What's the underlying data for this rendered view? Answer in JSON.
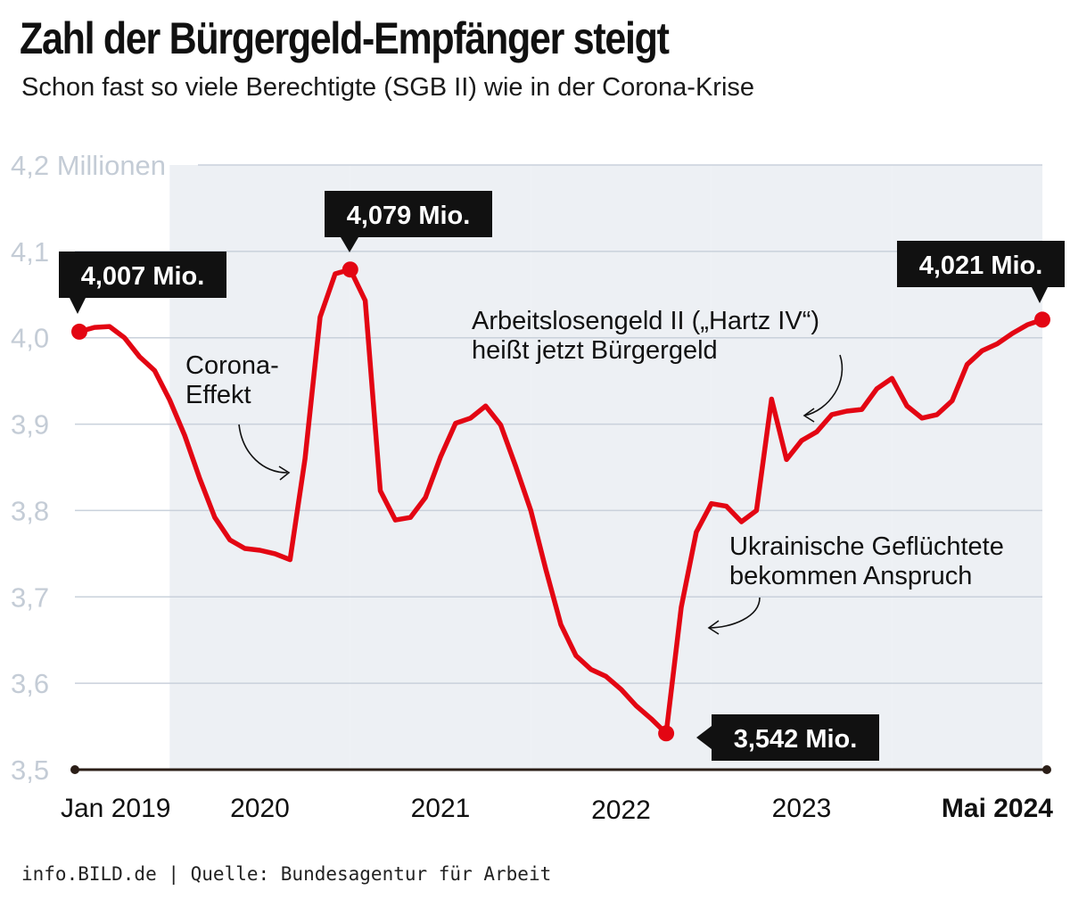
{
  "header": {
    "title": "Zahl der Bürgergeld-Empfänger steigt",
    "subtitle": "Schon fast so viele Berechtigte (SGB II) wie in der Corona-Krise"
  },
  "footer": {
    "source": "info.BILD.de | Quelle: Bundesagentur für Arbeit"
  },
  "colors": {
    "line": "#e30613",
    "band": "#edf0f4",
    "grid": "#c9d1db",
    "axis": "#2b1e17",
    "callout_bg": "#111111",
    "y_label": "#c4ccd6"
  },
  "chart_data": {
    "type": "line",
    "title": "Zahl der Bürgergeld-Empfänger steigt",
    "subtitle": "Schon fast so viele Berechtigte (SGB II) wie in der Corona-Krise",
    "ylim": [
      3.5,
      4.2
    ],
    "xlim": [
      "2019-01",
      "2024-05"
    ],
    "y_ticks": [
      {
        "value": 4.2,
        "label": "4,2 Millionen"
      },
      {
        "value": 4.1,
        "label": "4,1"
      },
      {
        "value": 4.0,
        "label": "4,0"
      },
      {
        "value": 3.9,
        "label": "3,9"
      },
      {
        "value": 3.8,
        "label": "3,8"
      },
      {
        "value": 3.7,
        "label": "3,7"
      },
      {
        "value": 3.6,
        "label": "3,6"
      },
      {
        "value": 3.5,
        "label": "3,5"
      }
    ],
    "x_ticks": [
      {
        "date": "2019-01",
        "label": "Jan 2019",
        "bold": false,
        "anchor": "start"
      },
      {
        "date": "2020-01",
        "label": "2020",
        "bold": false,
        "anchor": "middle"
      },
      {
        "date": "2021-01",
        "label": "2021",
        "bold": false,
        "anchor": "middle"
      },
      {
        "date": "2022-01",
        "label": "2022",
        "bold": false,
        "anchor": "middle"
      },
      {
        "date": "2023-01",
        "label": "2023",
        "bold": false,
        "anchor": "middle"
      },
      {
        "date": "2024-05",
        "label": "Mai 2024",
        "bold": true,
        "anchor": "end"
      }
    ],
    "shaded_years": [
      "2019-07",
      "2020-07",
      "2021-07",
      "2022-07",
      "2023-07"
    ],
    "grid": true,
    "legend": "none",
    "series": [
      {
        "dates": [
          "2019-01",
          "2019-02",
          "2019-03",
          "2019-04",
          "2019-05",
          "2019-06",
          "2019-07",
          "2019-08",
          "2019-09",
          "2019-10",
          "2019-11",
          "2019-12",
          "2020-01",
          "2020-02",
          "2020-03",
          "2020-04",
          "2020-05",
          "2020-06",
          "2020-07",
          "2020-08",
          "2020-09",
          "2020-10",
          "2020-11",
          "2020-12",
          "2021-01",
          "2021-02",
          "2021-03",
          "2021-04",
          "2021-05",
          "2021-06",
          "2021-07",
          "2021-08",
          "2021-09",
          "2021-10",
          "2021-11",
          "2021-12",
          "2022-01",
          "2022-02",
          "2022-03",
          "2022-04",
          "2022-05",
          "2022-06",
          "2022-07",
          "2022-08",
          "2022-09",
          "2022-10",
          "2022-11",
          "2022-12",
          "2023-01",
          "2023-02",
          "2023-03",
          "2023-04",
          "2023-05",
          "2023-06",
          "2023-07",
          "2023-08",
          "2023-09",
          "2023-10",
          "2023-11",
          "2023-12",
          "2024-01",
          "2024-02",
          "2024-03",
          "2024-04",
          "2024-05"
        ],
        "values": [
          4.007,
          4.012,
          4.013,
          4.0,
          3.978,
          3.962,
          3.928,
          3.887,
          3.837,
          3.792,
          3.766,
          3.756,
          3.754,
          3.75,
          3.743,
          3.86,
          4.024,
          4.074,
          4.079,
          4.043,
          3.823,
          3.789,
          3.792,
          3.815,
          3.862,
          3.901,
          3.907,
          3.921,
          3.899,
          3.851,
          3.8,
          3.732,
          3.668,
          3.632,
          3.616,
          3.608,
          3.593,
          3.574,
          3.559,
          3.542,
          3.688,
          3.775,
          3.808,
          3.805,
          3.787,
          3.8,
          3.929,
          3.859,
          3.881,
          3.891,
          3.911,
          3.915,
          3.917,
          3.941,
          3.953,
          3.921,
          3.907,
          3.911,
          3.927,
          3.969,
          3.985,
          3.993,
          4.005,
          4.015,
          4.021
        ]
      }
    ],
    "markers": [
      {
        "date": "2019-01",
        "value": 4.007,
        "label": "4,007 Mio."
      },
      {
        "date": "2020-07",
        "value": 4.079,
        "label": "4,079 Mio."
      },
      {
        "date": "2022-04",
        "value": 3.542,
        "label": "3,542 Mio."
      },
      {
        "date": "2024-05",
        "value": 4.021,
        "label": "4,021 Mio."
      }
    ],
    "annotations": [
      {
        "lines": [
          "Corona-",
          "Effekt"
        ]
      },
      {
        "lines": [
          "Arbeitslosengeld II („Hartz IV“)",
          "heißt jetzt Bürgergeld"
        ]
      },
      {
        "lines": [
          "Ukrainische Geflüchtete",
          "bekommen Anspruch"
        ]
      }
    ]
  }
}
